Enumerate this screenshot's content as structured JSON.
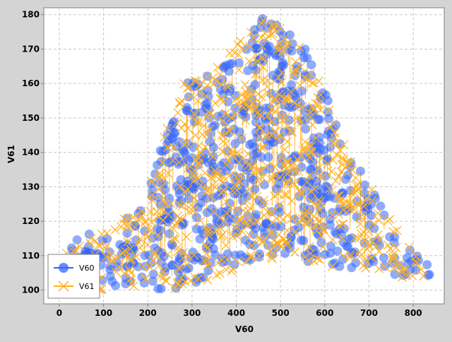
{
  "chart_data": {
    "type": "scatter",
    "title": "",
    "xlabel": "V60",
    "ylabel": "V61",
    "xlim": [
      -35,
      870
    ],
    "ylim": [
      96,
      182
    ],
    "x_ticks": [
      0,
      100,
      200,
      300,
      400,
      500,
      600,
      700,
      800
    ],
    "y_ticks": [
      100,
      110,
      120,
      130,
      140,
      150,
      160,
      170,
      180
    ],
    "grid": true,
    "legend": {
      "position": "bottom-left",
      "entries": [
        "V60",
        "V61"
      ]
    },
    "envelope": {
      "description_points": [
        [
          5,
          110
        ],
        [
          55,
          117
        ],
        [
          120,
          117
        ],
        [
          200,
          128
        ],
        [
          250,
          150
        ],
        [
          280,
          161
        ],
        [
          330,
          162
        ],
        [
          390,
          170
        ],
        [
          460,
          179
        ],
        [
          510,
          176
        ],
        [
          560,
          170
        ],
        [
          590,
          161
        ],
        [
          620,
          152
        ],
        [
          660,
          140
        ],
        [
          700,
          131
        ],
        [
          750,
          120
        ],
        [
          800,
          111
        ],
        [
          840,
          107
        ],
        [
          840,
          104
        ],
        [
          790,
          103
        ],
        [
          720,
          106
        ],
        [
          640,
          106
        ],
        [
          580,
          108
        ],
        [
          500,
          109
        ],
        [
          430,
          108
        ],
        [
          370,
          104
        ],
        [
          300,
          101
        ],
        [
          240,
          100
        ],
        [
          170,
          101
        ],
        [
          100,
          100
        ],
        [
          40,
          101
        ],
        [
          5,
          104
        ]
      ]
    },
    "series": [
      {
        "name": "V60",
        "marker": "circle",
        "color": "#3366ff"
      },
      {
        "name": "V61",
        "marker": "x",
        "color": "#ffb020"
      }
    ]
  }
}
